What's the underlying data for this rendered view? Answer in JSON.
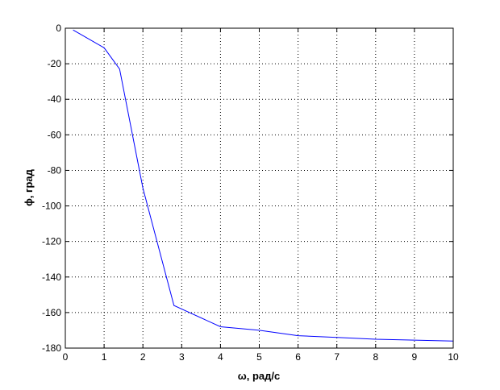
{
  "chart_data": {
    "type": "line",
    "title": "",
    "xlabel": "ω,  рад/с",
    "ylabel": "ϕ, град",
    "xlim": [
      0,
      10
    ],
    "ylim": [
      -180,
      0
    ],
    "xticks": [
      "0",
      "1",
      "2",
      "3",
      "4",
      "5",
      "6",
      "7",
      "8",
      "9",
      "10"
    ],
    "yticks": [
      "0",
      "-20",
      "-40",
      "-60",
      "-80",
      "-100",
      "-120",
      "-140",
      "-160",
      "-180"
    ],
    "grid": true,
    "series": [
      {
        "color": "#0000ff",
        "x": [
          0.2,
          1.0,
          1.4,
          2.0,
          2.8,
          4.0,
          5.0,
          6.0,
          7.0,
          8.0,
          9.0,
          10.0
        ],
        "y": [
          -1,
          -11,
          -23,
          -90,
          -156,
          -168,
          -170,
          -173,
          -174,
          -175,
          -175.5,
          -176
        ]
      }
    ]
  }
}
